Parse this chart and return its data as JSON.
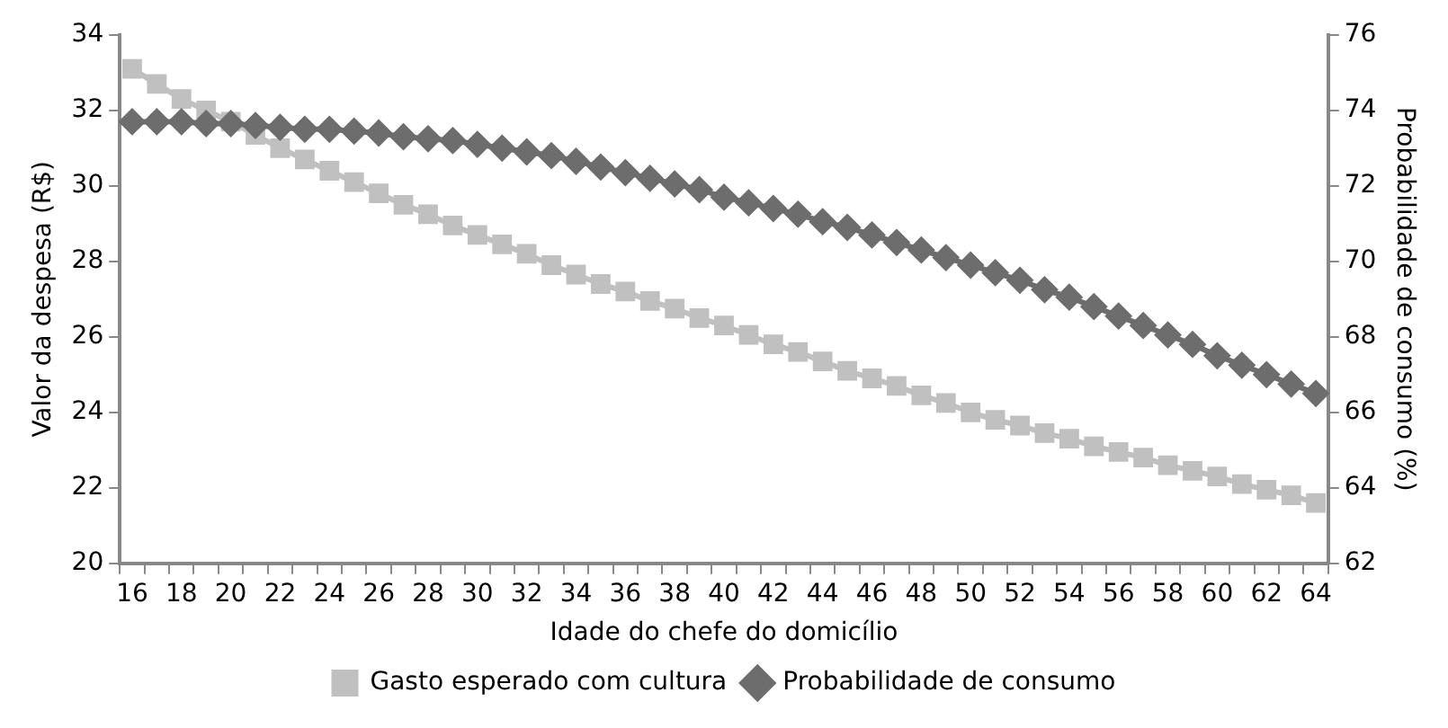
{
  "chart_data": {
    "type": "line",
    "xlabel": "Idade do chefe do domicílio",
    "ylabel": "Valor da despesa (R$)",
    "y2label": "Probabilidade de consumo (%)",
    "categories": [
      "16",
      null,
      "18",
      null,
      "20",
      null,
      "22",
      null,
      "24",
      null,
      "26",
      null,
      "28",
      null,
      "30",
      null,
      "32",
      null,
      "34",
      null,
      "36",
      null,
      "38",
      null,
      "40",
      null,
      "42",
      null,
      "44",
      null,
      "46",
      null,
      "48",
      null,
      "50",
      null,
      "52",
      null,
      "54",
      null,
      "56",
      null,
      "58",
      null,
      "60",
      null,
      "62",
      null,
      "64"
    ],
    "series": [
      {
        "name": "Gasto esperado com cultura",
        "color": "#c0c0c0",
        "marker": "square",
        "values": [
          33.1,
          32.7,
          32.3,
          32.0,
          31.7,
          31.35,
          31.0,
          30.7,
          30.4,
          30.1,
          29.8,
          29.5,
          29.25,
          28.95,
          28.7,
          28.45,
          28.2,
          27.9,
          27.65,
          27.4,
          27.2,
          26.95,
          26.75,
          26.5,
          26.3,
          26.05,
          25.8,
          25.6,
          25.35,
          25.1,
          24.9,
          24.7,
          24.45,
          24.25,
          24.0,
          23.8,
          23.65,
          23.45,
          23.3,
          23.1,
          22.95,
          22.8,
          22.6,
          22.45,
          22.3,
          22.1,
          21.95,
          21.8,
          21.6
        ]
      },
      {
        "name": "Probabilidade de consumo",
        "color": "#6d6d6d",
        "marker": "diamond",
        "axis": "y2",
        "values": [
          73.7,
          73.7,
          73.7,
          73.65,
          73.65,
          73.6,
          73.55,
          73.5,
          73.5,
          73.45,
          73.4,
          73.3,
          73.25,
          73.2,
          73.1,
          73.0,
          72.9,
          72.8,
          72.65,
          72.5,
          72.35,
          72.2,
          72.05,
          71.9,
          71.7,
          71.55,
          71.4,
          71.25,
          71.05,
          70.9,
          70.7,
          70.5,
          70.3,
          70.1,
          69.9,
          69.7,
          69.5,
          69.25,
          69.05,
          68.8,
          68.55,
          68.3,
          68.05,
          67.8,
          67.5,
          67.25,
          67.0,
          66.75,
          66.5
        ]
      }
    ],
    "ylim": [
      20,
      34
    ],
    "yticks": [
      20,
      22,
      24,
      26,
      28,
      30,
      32,
      34
    ],
    "y2lim": [
      62,
      76
    ],
    "y2ticks": [
      62,
      64,
      66,
      68,
      70,
      72,
      74,
      76
    ],
    "grid": false,
    "legend": "bottom",
    "line_style": "solid"
  }
}
